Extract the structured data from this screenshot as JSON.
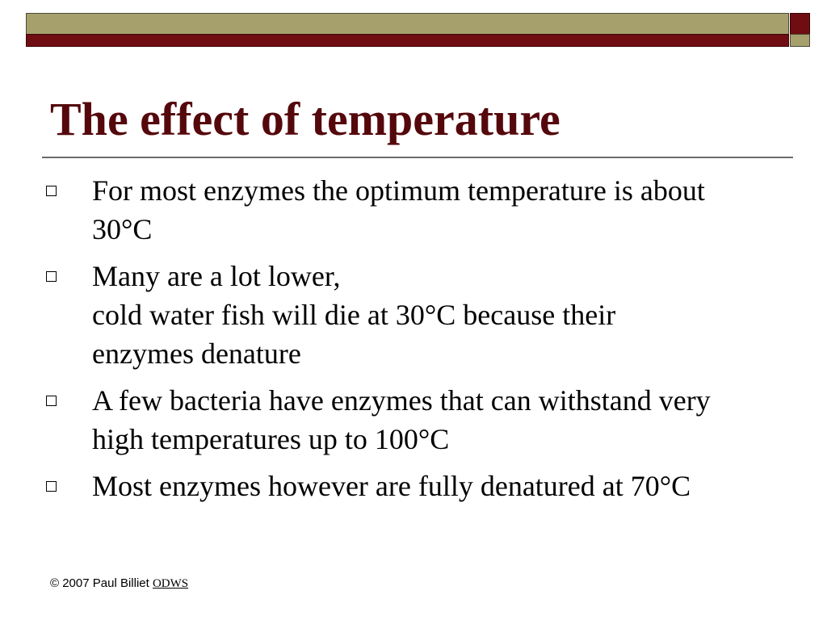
{
  "slide": {
    "title": "The effect of temperature",
    "bullets": [
      {
        "text": "For most enzymes the optimum temperature is about\n30°C"
      },
      {
        "text": "Many are a lot lower,\ncold water fish will die at 30°C because their\nenzymes denature"
      },
      {
        "text": "A few bacteria have enzymes that can withstand very\nhigh temperatures up to 100°C"
      },
      {
        "text": "Most enzymes however are fully denatured at 70°C"
      }
    ],
    "footer": {
      "copyright": "© 2007 Paul Billiet ",
      "link_label": "ODWS"
    }
  },
  "theme": {
    "title_color": "#55080c",
    "bar_olive": "#a6a06c",
    "bar_maroon": "#6f0d12"
  }
}
